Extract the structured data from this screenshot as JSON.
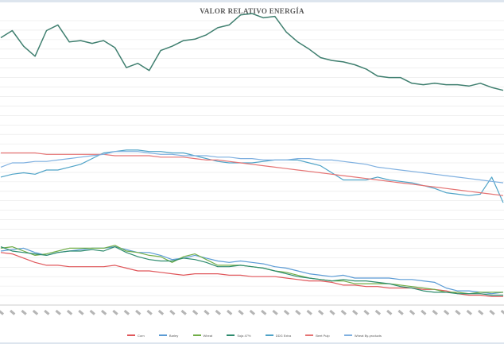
{
  "chart_data": {
    "type": "line",
    "title": "VALOR RELATIVO ENERGÍA",
    "xlabel": "",
    "ylabel": "",
    "ylim": [
      0,
      2
    ],
    "grid": true,
    "legend_position": "bottom",
    "series": [
      {
        "name": "Corn",
        "color": "#e0575b",
        "values": [
          0.37,
          0.36,
          0.33,
          0.3,
          0.28,
          0.28,
          0.27,
          0.27,
          0.27,
          0.27,
          0.28,
          0.26,
          0.24,
          0.24,
          0.23,
          0.22,
          0.21,
          0.22,
          0.22,
          0.22,
          0.21,
          0.21,
          0.2,
          0.2,
          0.2,
          0.19,
          0.18,
          0.17,
          0.17,
          0.16,
          0.14,
          0.14,
          0.13,
          0.13,
          0.12,
          0.12,
          0.12,
          0.11,
          0.11,
          0.1,
          0.08,
          0.07,
          0.07,
          0.06,
          0.06
        ]
      },
      {
        "name": "Barley",
        "color": "#5b9bd5",
        "values": [
          0.38,
          0.39,
          0.4,
          0.37,
          0.35,
          0.37,
          0.38,
          0.39,
          0.4,
          0.4,
          0.41,
          0.39,
          0.37,
          0.37,
          0.35,
          0.32,
          0.33,
          0.35,
          0.33,
          0.31,
          0.3,
          0.31,
          0.3,
          0.29,
          0.27,
          0.26,
          0.24,
          0.22,
          0.21,
          0.2,
          0.21,
          0.19,
          0.19,
          0.19,
          0.19,
          0.18,
          0.18,
          0.17,
          0.16,
          0.12,
          0.1,
          0.1,
          0.09,
          0.08,
          0.09
        ]
      },
      {
        "name": "Wheat",
        "color": "#70ad47",
        "values": [
          0.4,
          0.41,
          0.38,
          0.35,
          0.36,
          0.38,
          0.4,
          0.4,
          0.4,
          0.4,
          0.42,
          0.38,
          0.37,
          0.35,
          0.34,
          0.3,
          0.34,
          0.36,
          0.32,
          0.28,
          0.28,
          0.28,
          0.27,
          0.26,
          0.24,
          0.23,
          0.21,
          0.19,
          0.18,
          0.17,
          0.17,
          0.15,
          0.15,
          0.15,
          0.15,
          0.14,
          0.13,
          0.12,
          0.11,
          0.09,
          0.09,
          0.08,
          0.09,
          0.09,
          0.09
        ]
      },
      {
        "name": "Soja 47%",
        "color": "#2e8b6e",
        "values": [
          0.41,
          0.38,
          0.37,
          0.36,
          0.35,
          0.37,
          0.38,
          0.38,
          0.39,
          0.38,
          0.41,
          0.37,
          0.34,
          0.32,
          0.31,
          0.31,
          0.33,
          0.32,
          0.3,
          0.27,
          0.27,
          0.28,
          0.27,
          0.26,
          0.24,
          0.22,
          0.2,
          0.19,
          0.18,
          0.17,
          0.18,
          0.17,
          0.17,
          0.16,
          0.15,
          0.13,
          0.12,
          0.1,
          0.09,
          0.09,
          0.08,
          0.08,
          0.08,
          0.07,
          0.07
        ]
      },
      {
        "name": "DDG Extra",
        "color": "#4fa3c7",
        "values": [
          0.9,
          0.92,
          0.93,
          0.92,
          0.95,
          0.95,
          0.97,
          0.99,
          1.03,
          1.07,
          1.08,
          1.09,
          1.09,
          1.08,
          1.08,
          1.07,
          1.07,
          1.05,
          1.03,
          1.01,
          1.0,
          1.0,
          1.0,
          1.01,
          1.02,
          1.02,
          1.02,
          1.0,
          0.98,
          0.93,
          0.88,
          0.88,
          0.88,
          0.9,
          0.88,
          0.87,
          0.86,
          0.84,
          0.82,
          0.79,
          0.78,
          0.77,
          0.78,
          0.9,
          0.72
        ]
      },
      {
        "name": "Beet Pulp",
        "color": "#e57373",
        "values": [
          1.07,
          1.07,
          1.07,
          1.07,
          1.06,
          1.06,
          1.06,
          1.06,
          1.06,
          1.06,
          1.05,
          1.05,
          1.05,
          1.05,
          1.04,
          1.04,
          1.04,
          1.03,
          1.02,
          1.02,
          1.01,
          1.0,
          0.99,
          0.98,
          0.97,
          0.96,
          0.95,
          0.94,
          0.93,
          0.92,
          0.91,
          0.9,
          0.89,
          0.88,
          0.87,
          0.86,
          0.85,
          0.84,
          0.83,
          0.82,
          0.81,
          0.8,
          0.79,
          0.78,
          0.77
        ]
      },
      {
        "name": "Wheat By-products",
        "color": "#7fb0e0",
        "values": [
          0.97,
          1.0,
          1.0,
          1.01,
          1.01,
          1.02,
          1.03,
          1.04,
          1.05,
          1.06,
          1.08,
          1.08,
          1.08,
          1.07,
          1.06,
          1.06,
          1.05,
          1.05,
          1.05,
          1.04,
          1.04,
          1.03,
          1.03,
          1.02,
          1.02,
          1.02,
          1.03,
          1.03,
          1.02,
          1.02,
          1.01,
          1.0,
          0.99,
          0.97,
          0.96,
          0.95,
          0.94,
          0.93,
          0.92,
          0.91,
          0.9,
          0.89,
          0.88,
          0.87,
          0.86
        ]
      },
      {
        "name": "",
        "color": "#3f7f6f",
        "values": [
          1.88,
          1.93,
          1.82,
          1.75,
          1.93,
          1.97,
          1.85,
          1.86,
          1.84,
          1.86,
          1.81,
          1.67,
          1.7,
          1.65,
          1.79,
          1.82,
          1.86,
          1.87,
          1.9,
          1.95,
          1.97,
          2.04,
          2.05,
          2.02,
          2.03,
          1.92,
          1.85,
          1.8,
          1.74,
          1.72,
          1.71,
          1.69,
          1.66,
          1.61,
          1.6,
          1.6,
          1.56,
          1.55,
          1.56,
          1.55,
          1.55,
          1.54,
          1.56,
          1.53,
          1.51
        ]
      }
    ],
    "x_tick_count": 45
  }
}
